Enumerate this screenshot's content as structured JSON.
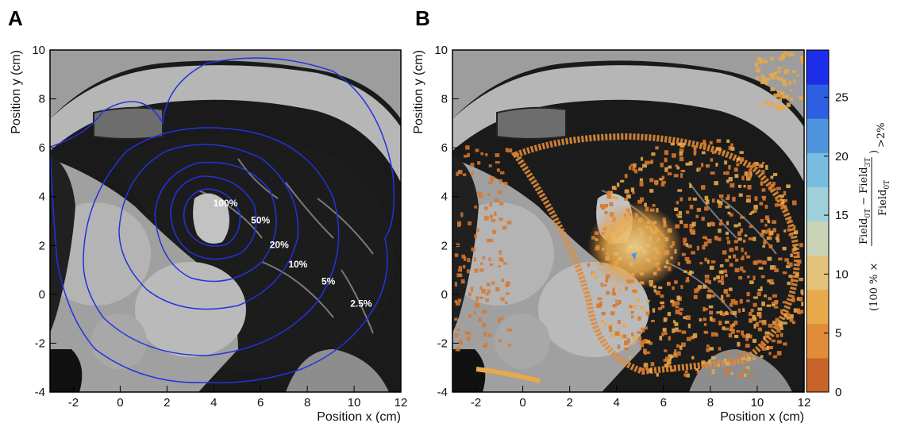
{
  "panels": {
    "a_letter": "A",
    "b_letter": "B"
  },
  "colors": {
    "isodose_line": "#2233dd",
    "fat": "#a9a9a9",
    "lung": "#1a1a1a",
    "muscle": "#8a8a8a",
    "bone": "#d0d0d0"
  },
  "chart_data": [
    {
      "type": "contour",
      "panel": "A",
      "xlabel": "Position x (cm)",
      "ylabel": "Position y (cm)",
      "xlim": [
        -3,
        12
      ],
      "ylim": [
        -4,
        10
      ],
      "xticks": [
        -2,
        0,
        2,
        4,
        6,
        8,
        10,
        12
      ],
      "yticks": [
        -4,
        -2,
        0,
        2,
        4,
        6,
        8,
        10
      ],
      "background": "CT slice (grayscale)",
      "contour_color": "#2233dd",
      "isodose_levels": [
        {
          "label": "100%",
          "x": 4.5,
          "y": 3.6
        },
        {
          "label": "50%",
          "x": 6.0,
          "y": 2.9
        },
        {
          "label": "20%",
          "x": 6.8,
          "y": 1.9
        },
        {
          "label": "10%",
          "x": 7.6,
          "y": 1.1
        },
        {
          "label": "5%",
          "x": 8.9,
          "y": 0.4
        },
        {
          "label": "2.5%",
          "x": 10.3,
          "y": -0.5
        }
      ]
    },
    {
      "type": "heatmap",
      "panel": "B",
      "xlabel": "Position x (cm)",
      "ylabel": "Position y (cm)",
      "xlim": [
        -3,
        12
      ],
      "ylim": [
        -4,
        10
      ],
      "xticks": [
        -2,
        0,
        2,
        4,
        6,
        8,
        10,
        12
      ],
      "yticks": [
        -4,
        -2,
        0,
        2,
        4,
        6,
        8,
        10
      ],
      "background": "CT slice (grayscale)",
      "colorbar": {
        "title_prefix": "(100 % ×",
        "numerator": "Field",
        "num_sub_1": "0T",
        "num_minus": "−",
        "num_sub_2": "3T",
        "denominator": "Field",
        "den_sub": "0T",
        "title_suffix": ")",
        "outer_sub": ">2%",
        "range": [
          0,
          29
        ],
        "ticks": [
          0,
          5,
          10,
          15,
          20,
          25
        ],
        "colors_low_to_high": [
          "#c8642a",
          "#e08c38",
          "#e8a94b",
          "#e3c27a",
          "#c9d3b5",
          "#9fd0d9",
          "#78bce0",
          "#4f93dc",
          "#2e5fe0",
          "#1c2ee8"
        ]
      },
      "note": "colored cells mark voxels where the 0T vs 3T field difference exceeds 2%"
    }
  ]
}
